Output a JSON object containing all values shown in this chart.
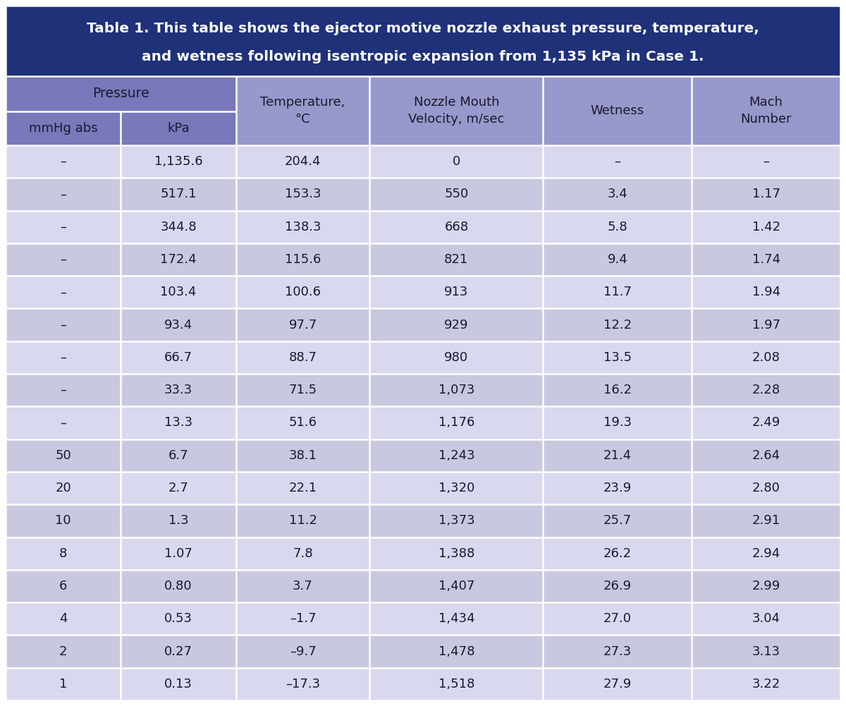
{
  "title_line1": "Table 1. This table shows the ejector motive nozzle exhaust pressure, temperature,",
  "title_line2": "and wetness following isentropic expansion from 1,135 kPa in Case 1.",
  "title_bg": "#1e3179",
  "title_text_color": "#ffffff",
  "header_bg_dark": "#7878bb",
  "header_bg_light": "#9898cc",
  "header_text_color": "#1a1a2e",
  "row_bg_light": "#d8d8ee",
  "row_bg_dark": "#c8c8e0",
  "row_text_color": "#1a1a2e",
  "divider_color": "#ffffff",
  "rows": [
    [
      "–",
      "1,135.6",
      "204.4",
      "0",
      "–",
      "–"
    ],
    [
      "–",
      "517.1",
      "153.3",
      "550",
      "3.4",
      "1.17"
    ],
    [
      "–",
      "344.8",
      "138.3",
      "668",
      "5.8",
      "1.42"
    ],
    [
      "–",
      "172.4",
      "115.6",
      "821",
      "9.4",
      "1.74"
    ],
    [
      "–",
      "103.4",
      "100.6",
      "913",
      "11.7",
      "1.94"
    ],
    [
      "–",
      "93.4",
      "97.7",
      "929",
      "12.2",
      "1.97"
    ],
    [
      "–",
      "66.7",
      "88.7",
      "980",
      "13.5",
      "2.08"
    ],
    [
      "–",
      "33.3",
      "71.5",
      "1,073",
      "16.2",
      "2.28"
    ],
    [
      "–",
      "13.3",
      "51.6",
      "1,176",
      "19.3",
      "2.49"
    ],
    [
      "50",
      "6.7",
      "38.1",
      "1,243",
      "21.4",
      "2.64"
    ],
    [
      "20",
      "2.7",
      "22.1",
      "1,320",
      "23.9",
      "2.80"
    ],
    [
      "10",
      "1.3",
      "11.2",
      "1,373",
      "25.7",
      "2.91"
    ],
    [
      "8",
      "1.07",
      "7.8",
      "1,388",
      "26.2",
      "2.94"
    ],
    [
      "6",
      "0.80",
      "3.7",
      "1,407",
      "26.9",
      "2.99"
    ],
    [
      "4",
      "0.53",
      "–1.7",
      "1,434",
      "27.0",
      "3.04"
    ],
    [
      "2",
      "0.27",
      "–9.7",
      "1,478",
      "27.3",
      "3.13"
    ],
    [
      "1",
      "0.13",
      "–17.3",
      "1,518",
      "27.9",
      "3.22"
    ]
  ]
}
